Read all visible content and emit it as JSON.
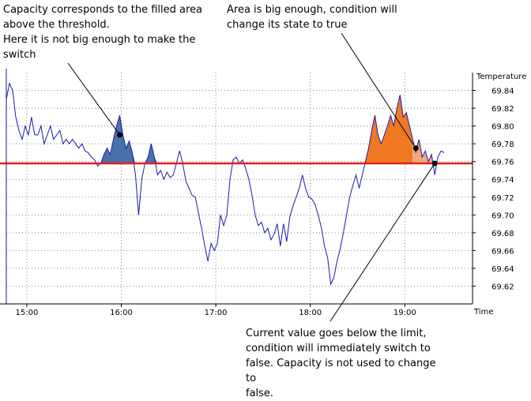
{
  "annotations": {
    "capacity_note": [
      "Capacity corresponds to the filled area",
      "above the threshold.",
      "Here it is not big enough to make the",
      "switch"
    ],
    "area_note": [
      "Area is big enough, condition will",
      "change its state to true"
    ],
    "current_note": [
      "Current value goes below the limit,",
      "condition will immediately switch to",
      "false. Capacity is not used to change to",
      "false."
    ]
  },
  "colors": {
    "line": "#1a1ab0",
    "threshold": "#e02020",
    "fill_blue": "#4a70a8",
    "fill_orange": "#f07820",
    "fill_salmon": "#f2a878",
    "grid": "#888888"
  },
  "chart_data": {
    "type": "line",
    "title": "",
    "xlabel": "Time",
    "ylabel": "Temperature",
    "x_ticks": [
      "15:00",
      "16:00",
      "17:00",
      "18:00",
      "19:00"
    ],
    "y_ticks": [
      "69.84",
      "69.82",
      "69.80",
      "69.78",
      "69.76",
      "69.74",
      "69.72",
      "69.70",
      "69.68",
      "69.66",
      "69.64",
      "69.62"
    ],
    "ylim": [
      69.6,
      69.86
    ],
    "xlim": [
      "14:47",
      "19:43"
    ],
    "grid": true,
    "threshold": 69.758,
    "series": [
      {
        "values": [
          [
            "14:47",
            69.83
          ],
          [
            "14:49",
            69.848
          ],
          [
            "14:51",
            69.84
          ],
          [
            "14:53",
            69.81
          ],
          [
            "14:55",
            69.795
          ],
          [
            "14:57",
            69.785
          ],
          [
            "14:59",
            69.8
          ],
          [
            "15:01",
            69.79
          ],
          [
            "15:03",
            69.81
          ],
          [
            "15:05",
            69.79
          ],
          [
            "15:07",
            69.79
          ],
          [
            "15:09",
            69.8
          ],
          [
            "15:11",
            69.78
          ],
          [
            "15:13",
            69.79
          ],
          [
            "15:15",
            69.8
          ],
          [
            "15:17",
            69.785
          ],
          [
            "15:19",
            69.79
          ],
          [
            "15:21",
            69.795
          ],
          [
            "15:23",
            69.78
          ],
          [
            "15:25",
            69.785
          ],
          [
            "15:27",
            69.78
          ],
          [
            "15:29",
            69.785
          ],
          [
            "15:31",
            69.78
          ],
          [
            "15:33",
            69.775
          ],
          [
            "15:35",
            69.78
          ],
          [
            "15:37",
            69.772
          ],
          [
            "15:39",
            69.77
          ],
          [
            "15:41",
            69.765
          ],
          [
            "15:43",
            69.762
          ],
          [
            "15:45",
            69.755
          ],
          [
            "15:47",
            69.758
          ],
          [
            "15:49",
            69.768
          ],
          [
            "15:51",
            69.775
          ],
          [
            "15:53",
            69.768
          ],
          [
            "15:55",
            69.785
          ],
          [
            "15:57",
            69.8
          ],
          [
            "15:59",
            69.812
          ],
          [
            "16:01",
            69.79
          ],
          [
            "16:03",
            69.775
          ],
          [
            "16:05",
            69.783
          ],
          [
            "16:07",
            69.77
          ],
          [
            "16:09",
            69.745
          ],
          [
            "16:11",
            69.7
          ],
          [
            "16:13",
            69.74
          ],
          [
            "16:15",
            69.758
          ],
          [
            "16:17",
            69.765
          ],
          [
            "16:19",
            69.78
          ],
          [
            "16:21",
            69.765
          ],
          [
            "16:23",
            69.745
          ],
          [
            "16:25",
            69.75
          ],
          [
            "16:27",
            69.74
          ],
          [
            "16:29",
            69.748
          ],
          [
            "16:31",
            69.742
          ],
          [
            "16:33",
            69.745
          ],
          [
            "16:35",
            69.758
          ],
          [
            "16:37",
            69.772
          ],
          [
            "16:39",
            69.758
          ],
          [
            "16:41",
            69.738
          ],
          [
            "16:43",
            69.73
          ],
          [
            "16:45",
            69.722
          ],
          [
            "16:47",
            69.72
          ],
          [
            "16:49",
            69.702
          ],
          [
            "16:51",
            69.685
          ],
          [
            "16:53",
            69.665
          ],
          [
            "16:55",
            69.648
          ],
          [
            "16:57",
            69.668
          ],
          [
            "16:59",
            69.66
          ],
          [
            "17:01",
            69.668
          ],
          [
            "17:03",
            69.7
          ],
          [
            "17:05",
            69.688
          ],
          [
            "17:07",
            69.7
          ],
          [
            "17:09",
            69.74
          ],
          [
            "17:11",
            69.762
          ],
          [
            "17:13",
            69.765
          ],
          [
            "17:15",
            69.758
          ],
          [
            "17:17",
            69.762
          ],
          [
            "17:19",
            69.752
          ],
          [
            "17:21",
            69.74
          ],
          [
            "17:23",
            69.722
          ],
          [
            "17:25",
            69.7
          ],
          [
            "17:27",
            69.688
          ],
          [
            "17:29",
            69.692
          ],
          [
            "17:31",
            69.68
          ],
          [
            "17:33",
            69.685
          ],
          [
            "17:35",
            69.672
          ],
          [
            "17:37",
            69.678
          ],
          [
            "17:39",
            69.69
          ],
          [
            "17:41",
            69.665
          ],
          [
            "17:43",
            69.69
          ],
          [
            "17:45",
            69.67
          ],
          [
            "17:47",
            69.698
          ],
          [
            "17:49",
            69.71
          ],
          [
            "17:51",
            69.72
          ],
          [
            "17:53",
            69.73
          ],
          [
            "17:55",
            69.745
          ],
          [
            "17:57",
            69.73
          ],
          [
            "17:59",
            69.72
          ],
          [
            "18:01",
            69.718
          ],
          [
            "18:03",
            69.712
          ],
          [
            "18:05",
            69.7
          ],
          [
            "18:07",
            69.686
          ],
          [
            "18:09",
            69.665
          ],
          [
            "18:11",
            69.652
          ],
          [
            "18:13",
            69.622
          ],
          [
            "18:15",
            69.63
          ],
          [
            "18:17",
            69.648
          ],
          [
            "18:19",
            69.662
          ],
          [
            "18:21",
            69.68
          ],
          [
            "18:23",
            69.7
          ],
          [
            "18:25",
            69.72
          ],
          [
            "18:27",
            69.733
          ],
          [
            "18:29",
            69.745
          ],
          [
            "18:31",
            69.73
          ],
          [
            "18:33",
            69.745
          ],
          [
            "18:35",
            69.76
          ],
          [
            "18:37",
            69.775
          ],
          [
            "18:39",
            69.795
          ],
          [
            "18:41",
            69.812
          ],
          [
            "18:43",
            69.79
          ],
          [
            "18:45",
            69.78
          ],
          [
            "18:47",
            69.79
          ],
          [
            "18:49",
            69.8
          ],
          [
            "18:51",
            69.812
          ],
          [
            "18:53",
            69.8
          ],
          [
            "18:55",
            69.82
          ],
          [
            "18:57",
            69.835
          ],
          [
            "18:59",
            69.81
          ],
          [
            "19:01",
            69.815
          ],
          [
            "19:03",
            69.8
          ],
          [
            "19:05",
            69.785
          ],
          [
            "19:07",
            69.77
          ],
          [
            "19:09",
            69.785
          ],
          [
            "19:11",
            69.765
          ],
          [
            "19:13",
            69.772
          ],
          [
            "19:15",
            69.76
          ],
          [
            "19:17",
            69.768
          ],
          [
            "19:19",
            69.745
          ],
          [
            "19:21",
            69.765
          ],
          [
            "19:23",
            69.772
          ],
          [
            "19:25",
            69.77
          ]
        ]
      }
    ],
    "filled_areas": [
      {
        "color": "blue",
        "from": "15:46",
        "to": "16:25"
      },
      {
        "color": "orange",
        "from": "18:34",
        "to": "19:05"
      },
      {
        "color": "salmon",
        "from": "19:05",
        "to": "19:18"
      }
    ],
    "markers": [
      [
        "15:59",
        69.79
      ],
      [
        "19:07",
        69.775
      ],
      [
        "19:19",
        69.758
      ]
    ]
  }
}
